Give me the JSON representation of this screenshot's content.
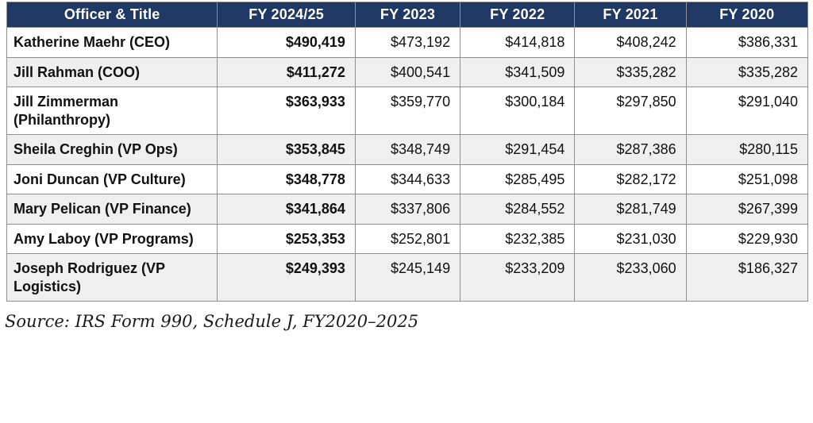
{
  "table": {
    "headers": [
      "Officer & Title",
      "FY 2024/25",
      "FY 2023",
      "FY 2022",
      "FY 2021",
      "FY 2020"
    ],
    "rows": [
      {
        "name": "Katherine Maehr (CEO)",
        "values": [
          "$490,419",
          "$473,192",
          "$414,818",
          "$408,242",
          "$386,331"
        ]
      },
      {
        "name": "Jill Rahman (COO)",
        "values": [
          "$411,272",
          "$400,541",
          "$341,509",
          "$335,282",
          "$335,282"
        ]
      },
      {
        "name": "Jill Zimmerman (Philanthropy)",
        "values": [
          "$363,933",
          "$359,770",
          "$300,184",
          "$297,850",
          "$291,040"
        ]
      },
      {
        "name": "Sheila Creghin (VP Ops)",
        "values": [
          "$353,845",
          "$348,749",
          "$291,454",
          "$287,386",
          "$280,115"
        ]
      },
      {
        "name": "Joni Duncan (VP Culture)",
        "values": [
          "$348,778",
          "$344,633",
          "$285,495",
          "$282,172",
          "$251,098"
        ]
      },
      {
        "name": "Mary Pelican (VP Finance)",
        "values": [
          "$341,864",
          "$337,806",
          "$284,552",
          "$281,749",
          "$267,399"
        ]
      },
      {
        "name": "Amy Laboy (VP Programs)",
        "values": [
          "$253,353",
          "$252,801",
          "$232,385",
          "$231,030",
          "$229,930"
        ]
      },
      {
        "name": "Joseph Rodriguez (VP Logistics)",
        "values": [
          "$249,393",
          "$245,149",
          "$233,209",
          "$233,060",
          "$186,327"
        ]
      }
    ]
  },
  "source_note": "Source: IRS Form 990, Schedule J, FY2020–2025",
  "colors": {
    "header_bg": "#1f3864",
    "header_text": "#ffffff",
    "stripe_bg": "#efefef",
    "border": "#8f8f8f"
  }
}
